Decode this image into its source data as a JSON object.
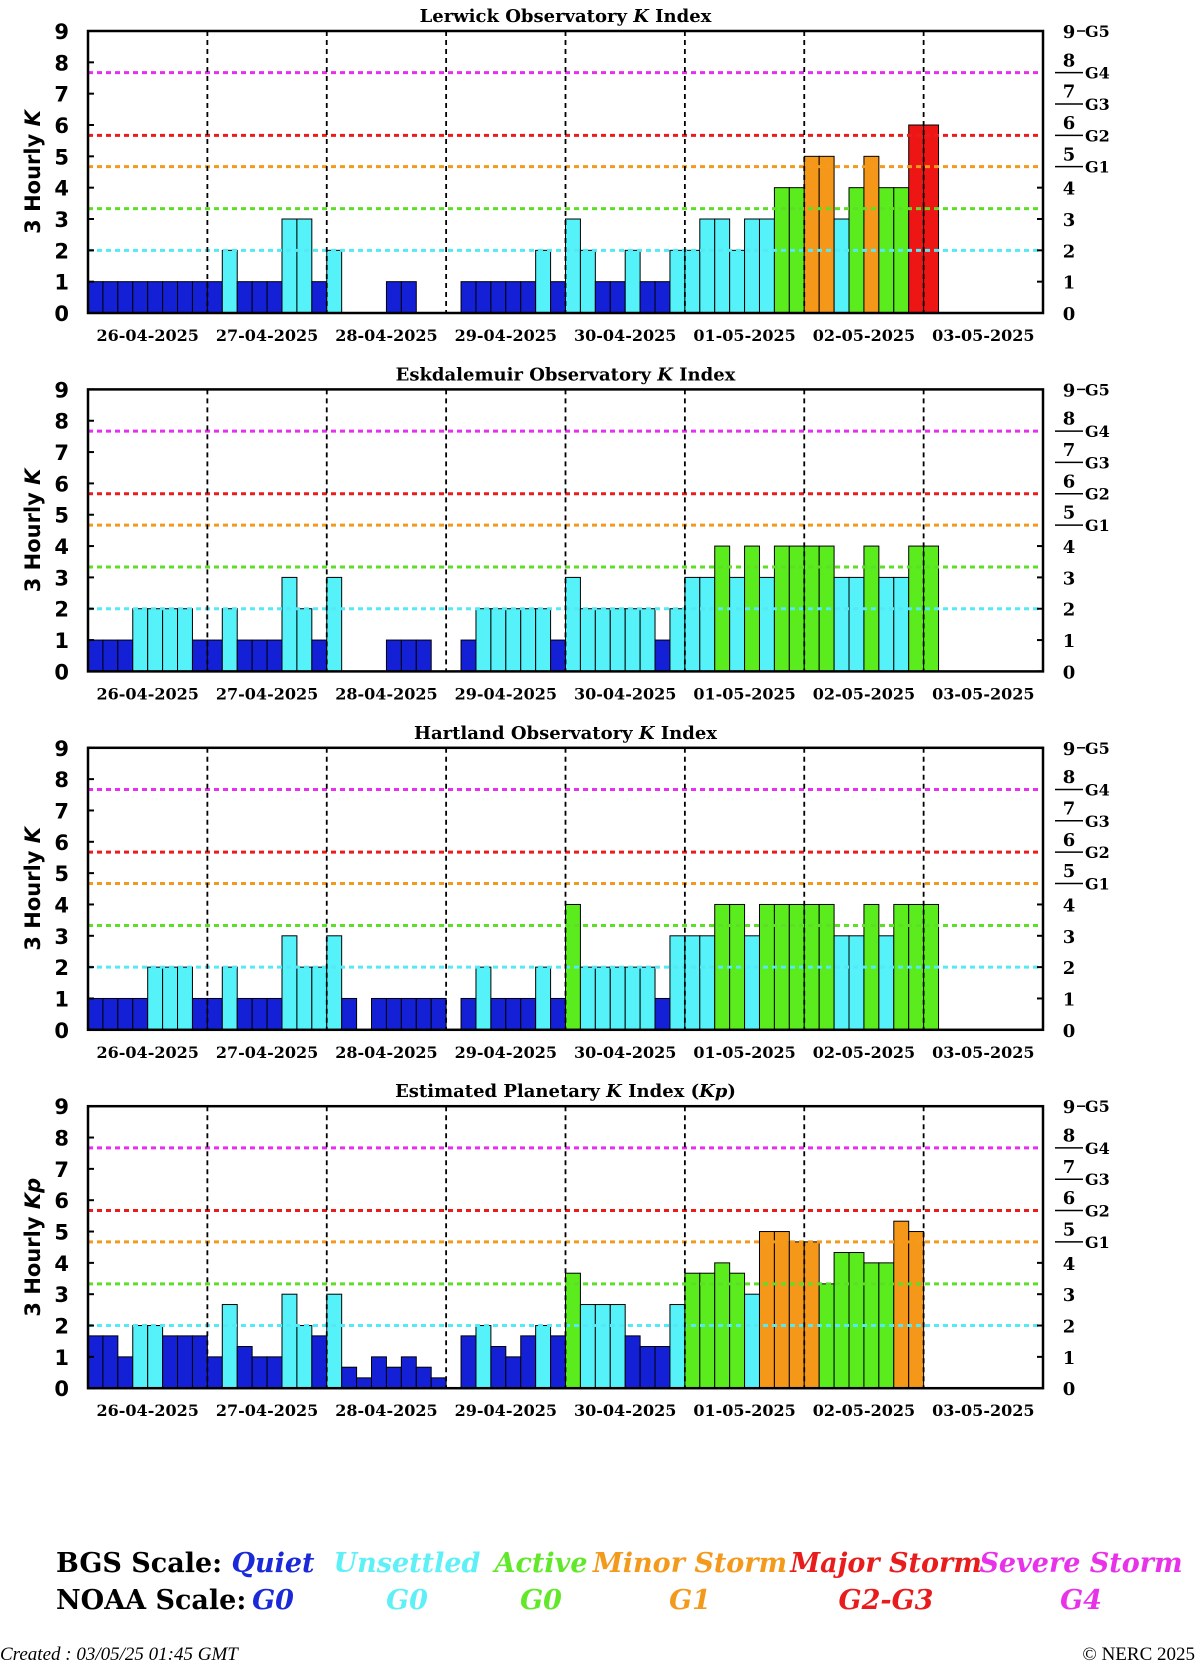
{
  "dates": [
    "26-04-2025",
    "27-04-2025",
    "28-04-2025",
    "29-04-2025",
    "30-04-2025",
    "01-05-2025",
    "02-05-2025",
    "03-05-2025"
  ],
  "chart_data": [
    {
      "type": "bar",
      "title_parts": [
        "Lerwick Observatory ",
        "K",
        " Index"
      ],
      "ylabel_parts": [
        "3 Hourly ",
        "K"
      ],
      "ylim": [
        0,
        9
      ],
      "values": [
        1,
        1,
        1,
        1,
        1,
        1,
        1,
        1,
        1,
        2,
        1,
        1,
        1,
        3,
        3,
        1,
        2,
        0,
        0,
        0,
        1,
        1,
        0,
        0,
        0,
        1,
        1,
        1,
        1,
        1,
        2,
        1,
        3,
        2,
        1,
        1,
        2,
        1,
        1,
        2,
        2,
        3,
        3,
        2,
        3,
        3,
        4,
        4,
        5,
        5,
        3,
        4,
        5,
        4,
        4,
        6,
        6,
        0,
        0,
        0,
        0,
        0,
        0,
        0
      ]
    },
    {
      "type": "bar",
      "title_parts": [
        "Eskdalemuir Observatory ",
        "K",
        " Index"
      ],
      "ylabel_parts": [
        "3 Hourly ",
        "K"
      ],
      "ylim": [
        0,
        9
      ],
      "values": [
        1,
        1,
        1,
        2,
        2,
        2,
        2,
        1,
        1,
        2,
        1,
        1,
        1,
        3,
        2,
        1,
        3,
        0,
        0,
        0,
        1,
        1,
        1,
        0,
        0,
        1,
        2,
        2,
        2,
        2,
        2,
        1,
        3,
        2,
        2,
        2,
        2,
        2,
        1,
        2,
        3,
        3,
        4,
        3,
        4,
        3,
        4,
        4,
        4,
        4,
        3,
        3,
        4,
        3,
        3,
        4,
        4,
        0,
        0,
        0,
        0,
        0,
        0,
        0
      ]
    },
    {
      "type": "bar",
      "title_parts": [
        "Hartland Observatory ",
        "K",
        " Index"
      ],
      "ylabel_parts": [
        "3 Hourly ",
        "K"
      ],
      "ylim": [
        0,
        9
      ],
      "values": [
        1,
        1,
        1,
        1,
        2,
        2,
        2,
        1,
        1,
        2,
        1,
        1,
        1,
        3,
        2,
        2,
        3,
        1,
        0,
        1,
        1,
        1,
        1,
        1,
        0,
        1,
        2,
        1,
        1,
        1,
        2,
        1,
        4,
        2,
        2,
        2,
        2,
        2,
        1,
        3,
        3,
        3,
        4,
        4,
        3,
        4,
        4,
        4,
        4,
        4,
        3,
        3,
        4,
        3,
        4,
        4,
        4,
        0,
        0,
        0,
        0,
        0,
        0,
        0
      ]
    },
    {
      "type": "bar",
      "title_parts": [
        "Estimated Planetary ",
        "K",
        " Index (",
        "Kp",
        ")"
      ],
      "ylabel_parts": [
        "3 Hourly ",
        "Kp"
      ],
      "ylim": [
        0,
        9
      ],
      "values": [
        1.67,
        1.67,
        1,
        2,
        2,
        1.67,
        1.67,
        1.67,
        1,
        2.67,
        1.33,
        1,
        1,
        3,
        2,
        1.67,
        3,
        0.67,
        0.33,
        1,
        0.67,
        1,
        0.67,
        0.33,
        0,
        1.67,
        2,
        1.33,
        1,
        1.67,
        2,
        1.67,
        3.67,
        2.67,
        2.67,
        2.67,
        1.67,
        1.33,
        1.33,
        2.67,
        3.67,
        3.67,
        4,
        3.67,
        3,
        5,
        5,
        4.67,
        4.67,
        3.33,
        4.33,
        4.33,
        4,
        4,
        5.33,
        5,
        0,
        0,
        0,
        0,
        0,
        0,
        0,
        0
      ]
    }
  ],
  "thresholds": [
    {
      "value": 2,
      "color": "#55e8f5"
    },
    {
      "value": 3.33,
      "color": "#5ddf27"
    },
    {
      "value": 4.67,
      "color": "#f39a1c"
    },
    {
      "value": 5.67,
      "color": "#ec1c1c"
    },
    {
      "value": 7.67,
      "color": "#e82ef0"
    }
  ],
  "right_axis": {
    "ticks": [
      "0",
      "1",
      "2",
      "3",
      "4"
    ],
    "g_labels": [
      {
        "num": "5",
        "g": "G1"
      },
      {
        "num": "6",
        "g": "G2"
      },
      {
        "num": "7",
        "g": "G3"
      },
      {
        "num": "8",
        "g": "G4"
      },
      {
        "num": "9",
        "g": "G5"
      }
    ]
  },
  "colors": {
    "quiet": "#1420d6",
    "unsettled": "#55f2fa",
    "active": "#5bec1d",
    "minor_storm": "#f5981a",
    "major_storm": "#ee1515",
    "severe_storm": "#e02ae8"
  },
  "legend": {
    "bgs_title": "BGS Scale:",
    "noaa_title": "NOAA Scale:",
    "items": [
      {
        "bgs": "Quiet",
        "noaa": "G0",
        "color": "#1a2ad8"
      },
      {
        "bgs": "Unsettled",
        "noaa": "G0",
        "color": "#5ef0f7"
      },
      {
        "bgs": "Active",
        "noaa": "G0",
        "color": "#62e82a"
      },
      {
        "bgs": "Minor Storm",
        "noaa": "G1",
        "color": "#f39a1c"
      },
      {
        "bgs": "Major Storm",
        "noaa": "G2-G3",
        "color": "#e81c1c"
      },
      {
        "bgs": "Severe Storm",
        "noaa": "G4",
        "color": "#e832ea"
      }
    ]
  },
  "footer": {
    "created": "Created : 03/05/25 01:45 GMT",
    "copyright": "© NERC 2025"
  }
}
